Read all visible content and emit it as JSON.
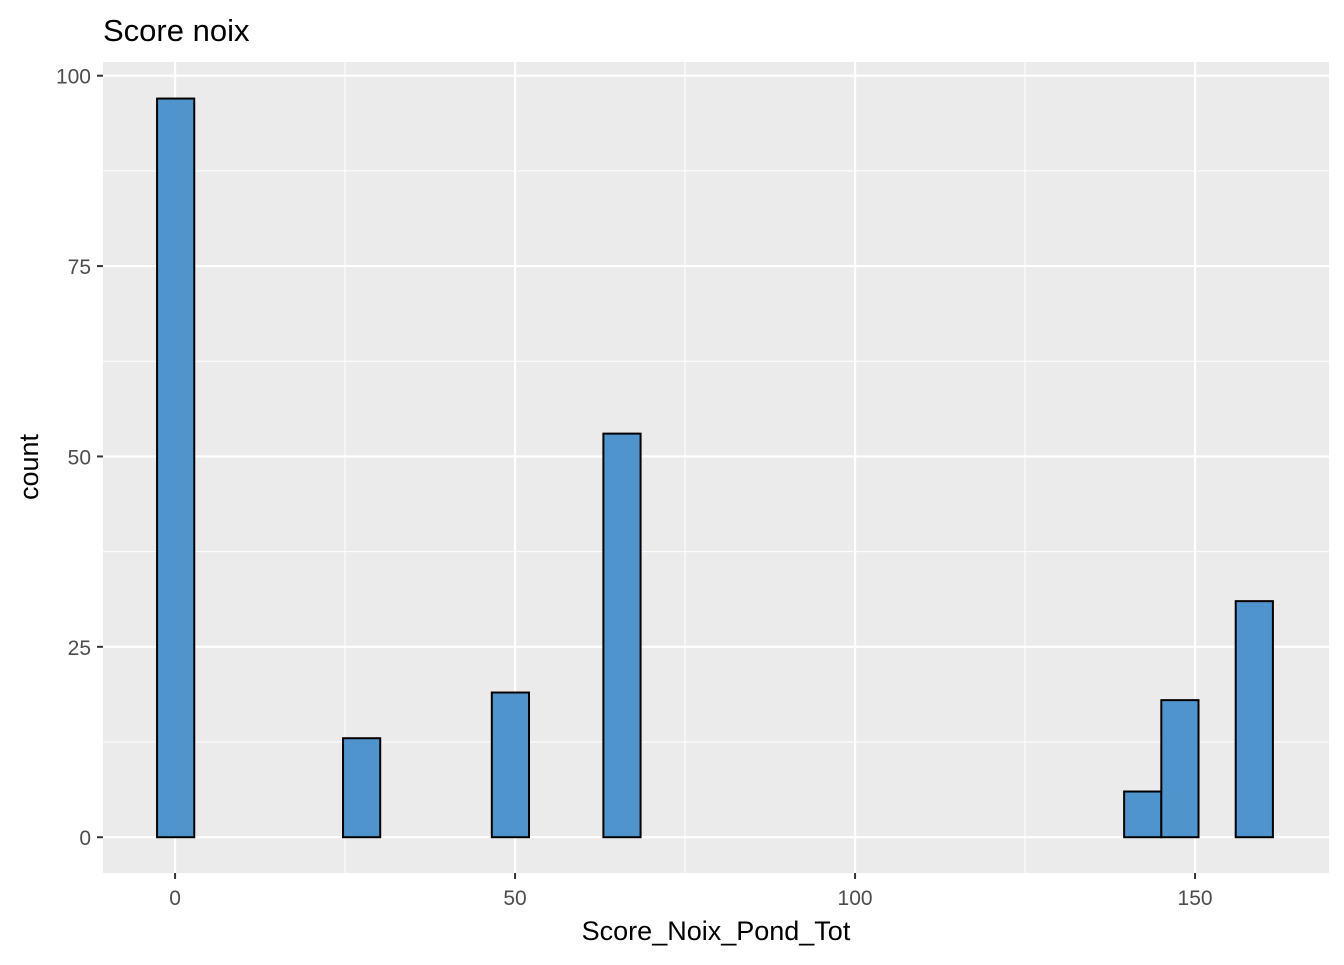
{
  "chart_data": {
    "type": "bar",
    "subtype": "histogram",
    "title": "Score noix",
    "xlabel": "Score_Noix_Pond_Tot",
    "ylabel": "count",
    "bin_start": -2.65,
    "binwidth": 5.47,
    "counts": [
      97,
      0,
      0,
      0,
      0,
      13,
      0,
      0,
      0,
      19,
      0,
      0,
      53,
      0,
      0,
      0,
      0,
      0,
      0,
      0,
      0,
      0,
      0,
      0,
      0,
      0,
      6,
      18,
      0,
      31
    ],
    "xlim": [
      -10.6,
      169.7
    ],
    "ylim": [
      -4.7,
      101.8
    ],
    "xticks": [
      0,
      50,
      100,
      150
    ],
    "xtick_labels": [
      "0",
      "50",
      "100",
      "150"
    ],
    "yticks": [
      0,
      25,
      50,
      75,
      100
    ],
    "ytick_labels": [
      "0",
      "25",
      "50",
      "75",
      "100"
    ],
    "grid": true,
    "colors": {
      "fill": "#4F94CD",
      "outline": "#000000",
      "panel": "#EBEBEB",
      "grid": "#FFFFFF"
    }
  }
}
